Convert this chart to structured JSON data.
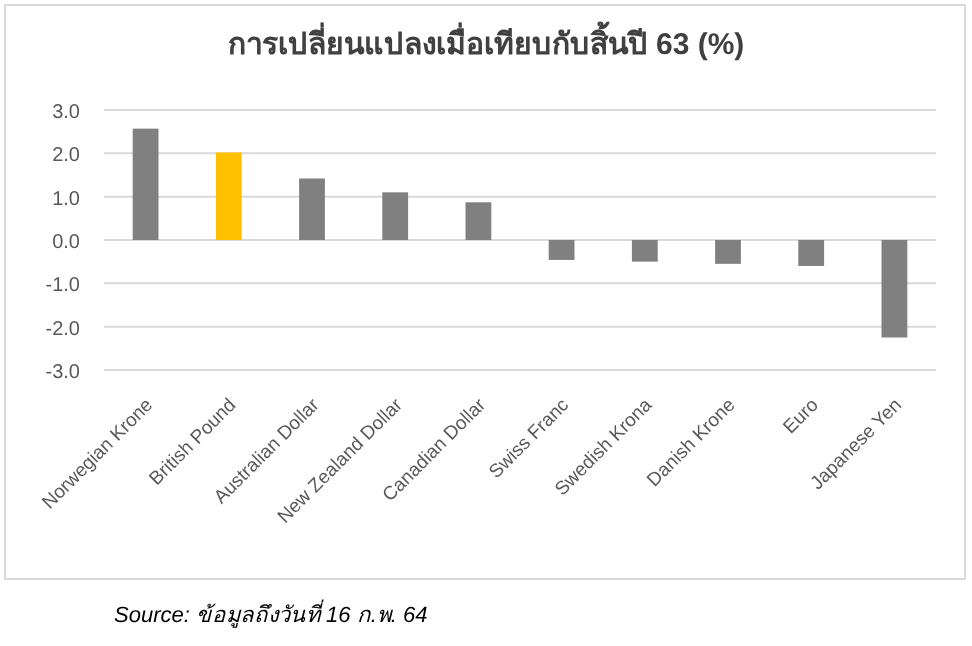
{
  "chart_data": {
    "type": "bar",
    "title": "การเปลี่ยนแปลงเมื่อเทียบกับสิ้นปี 63 (%)",
    "categories": [
      "Norwegian Krone",
      "British Pound",
      "Australian Dollar",
      "New Zealand Dollar",
      "Canadian Dollar",
      "Swiss Franc",
      "Swedish Krona",
      "Danish Krone",
      "Euro",
      "Japanese Yen"
    ],
    "values": [
      2.57,
      2.02,
      1.42,
      1.1,
      0.87,
      -0.46,
      -0.5,
      -0.55,
      -0.6,
      -2.25
    ],
    "colors": [
      "#808080",
      "#ffc000",
      "#808080",
      "#808080",
      "#808080",
      "#808080",
      "#808080",
      "#808080",
      "#808080",
      "#808080"
    ],
    "ylim": [
      -3,
      3
    ],
    "yticks": [
      {
        "value": -3,
        "label": "-3.0"
      },
      {
        "value": -2,
        "label": "-2.0"
      },
      {
        "value": -1,
        "label": "-1.0"
      },
      {
        "value": 0,
        "label": "0.0"
      },
      {
        "value": 1,
        "label": "1.0"
      },
      {
        "value": 2,
        "label": "2.0"
      },
      {
        "value": 3,
        "label": "3.0"
      }
    ],
    "grid": "y",
    "annotations": [
      "Source: ข้อมูลถึงวันที่ 16 ก.พ. 64"
    ]
  }
}
